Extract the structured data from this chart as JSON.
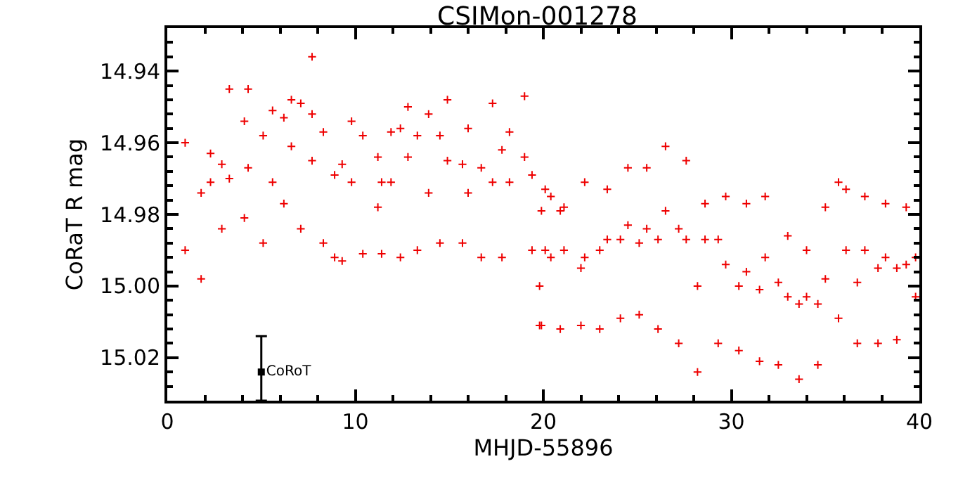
{
  "chart_data": {
    "type": "scatter",
    "title": "CSIMon-001278",
    "xlabel": "MHJD-55896",
    "ylabel": "CoRaT R mag",
    "xlim": [
      0,
      40
    ],
    "xticks": [
      0,
      10,
      20,
      30,
      40
    ],
    "ylim": [
      15.032,
      14.928
    ],
    "yticks": [
      {
        "value": 14.94,
        "label": "14.94"
      },
      {
        "value": 14.96,
        "label": "14.96"
      },
      {
        "value": 14.98,
        "label": "14.98"
      },
      {
        "value": 15.0,
        "label": "15.00"
      },
      {
        "value": 15.02,
        "label": "15.02"
      }
    ],
    "legend": false,
    "series": [
      {
        "color": "#ee0000",
        "marker": "cross",
        "x": [
          0.95,
          0.95,
          1.8,
          1.8,
          2.3,
          2.3,
          2.9,
          2.9,
          3.3,
          3.3,
          4.1,
          4.1,
          4.3,
          4.3,
          5.1,
          5.1,
          5.6,
          5.6,
          6.2,
          6.2,
          6.6,
          6.6,
          7.1,
          7.1,
          7.7,
          7.7,
          7.7,
          8.3,
          8.3,
          8.9,
          8.9,
          9.3,
          9.3,
          9.8,
          9.8,
          10.4,
          10.4,
          11.2,
          11.2,
          11.4,
          11.4,
          11.9,
          11.9,
          12.4,
          12.4,
          12.8,
          12.8,
          13.3,
          13.3,
          13.9,
          13.9,
          14.5,
          14.5,
          14.9,
          14.9,
          15.7,
          15.7,
          16.0,
          16.0,
          16.7,
          16.7,
          17.3,
          17.3,
          17.8,
          17.8,
          18.2,
          18.2,
          19.0,
          19.0,
          19.4,
          19.4,
          19.8,
          19.8,
          19.9,
          19.9,
          20.1,
          20.1,
          20.4,
          20.4,
          20.9,
          20.9,
          21.1,
          21.1,
          22.0,
          22.0,
          22.2,
          22.2,
          23.0,
          23.0,
          23.4,
          23.4,
          24.1,
          24.1,
          24.5,
          24.5,
          25.1,
          25.1,
          25.5,
          25.5,
          26.1,
          26.1,
          26.5,
          26.5,
          27.2,
          27.2,
          27.6,
          27.6,
          28.2,
          28.2,
          28.6,
          28.6,
          29.3,
          29.3,
          29.7,
          29.7,
          30.4,
          30.4,
          30.8,
          30.8,
          31.5,
          31.5,
          31.8,
          31.8,
          32.5,
          32.5,
          33.0,
          33.0,
          33.6,
          33.6,
          34.0,
          34.0,
          34.6,
          34.6,
          35.0,
          35.0,
          35.7,
          35.7,
          36.1,
          36.1,
          36.7,
          36.7,
          37.1,
          37.1,
          37.8,
          37.8,
          38.2,
          38.2,
          38.8,
          38.8,
          39.3,
          39.3,
          39.8,
          39.8
        ],
        "values": [
          14.96,
          14.99,
          14.974,
          14.998,
          14.963,
          14.971,
          14.966,
          14.984,
          14.945,
          14.97,
          14.954,
          14.981,
          14.945,
          14.967,
          14.958,
          14.988,
          14.951,
          14.971,
          14.953,
          14.977,
          14.948,
          14.961,
          14.949,
          14.984,
          14.936,
          14.952,
          14.965,
          14.957,
          14.988,
          14.969,
          14.992,
          14.966,
          14.993,
          14.954,
          14.971,
          14.958,
          14.991,
          14.964,
          14.978,
          14.971,
          14.991,
          14.957,
          14.971,
          14.956,
          14.992,
          14.95,
          14.964,
          14.958,
          14.99,
          14.952,
          14.974,
          14.958,
          14.988,
          14.948,
          14.965,
          14.966,
          14.988,
          14.956,
          14.974,
          14.967,
          14.992,
          14.949,
          14.971,
          14.962,
          14.992,
          14.957,
          14.971,
          14.947,
          14.964,
          14.969,
          14.99,
          15.0,
          15.011,
          14.979,
          15.011,
          14.973,
          14.99,
          14.975,
          14.992,
          14.979,
          15.012,
          14.978,
          14.99,
          14.995,
          15.011,
          14.971,
          14.992,
          14.99,
          15.012,
          14.973,
          14.987,
          14.987,
          15.009,
          14.967,
          14.983,
          14.988,
          15.008,
          14.967,
          14.984,
          14.987,
          15.012,
          14.961,
          14.979,
          14.984,
          15.016,
          14.965,
          14.987,
          15.0,
          15.024,
          14.977,
          14.987,
          14.987,
          15.016,
          14.975,
          14.994,
          15.0,
          15.018,
          14.977,
          14.996,
          15.001,
          15.021,
          14.975,
          14.992,
          14.999,
          15.022,
          14.986,
          15.003,
          15.005,
          15.026,
          14.99,
          15.003,
          15.005,
          15.022,
          14.978,
          14.998,
          14.971,
          15.009,
          14.973,
          14.99,
          14.999,
          15.016,
          14.975,
          14.99,
          14.995,
          15.016,
          14.977,
          14.992,
          14.995,
          15.015,
          14.978,
          14.994,
          14.992,
          15.003
        ]
      },
      {
        "name": "CoRoT",
        "color": "#000000",
        "marker": "square",
        "x": [
          5
        ],
        "values": [
          15.024
        ],
        "errors": [
          [
            15.014,
            15.032
          ]
        ]
      }
    ]
  }
}
